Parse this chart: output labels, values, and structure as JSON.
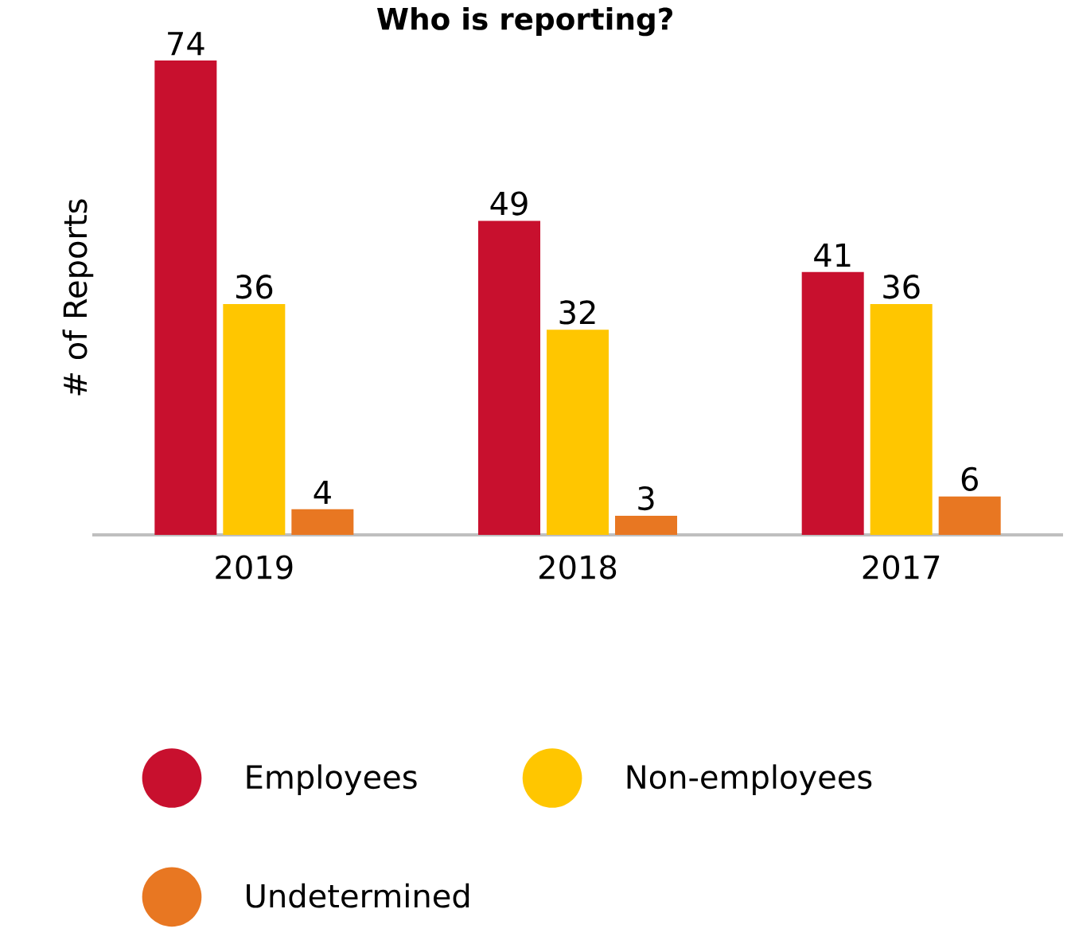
{
  "chart_data": {
    "type": "bar",
    "title": "Who is reporting?",
    "ylabel": "# of Reports",
    "categories": [
      "2019",
      "2018",
      "2017"
    ],
    "series": [
      {
        "name": "Employees",
        "color": "#c8102e",
        "values": [
          74,
          49,
          41
        ]
      },
      {
        "name": "Non-employees",
        "color": "#ffc600",
        "values": [
          36,
          32,
          36
        ]
      },
      {
        "name": "Undetermined",
        "color": "#e87722",
        "values": [
          4,
          3,
          6
        ]
      }
    ],
    "tick_labels": "x",
    "data_labels": true,
    "legend": "bottom",
    "grid": false
  }
}
